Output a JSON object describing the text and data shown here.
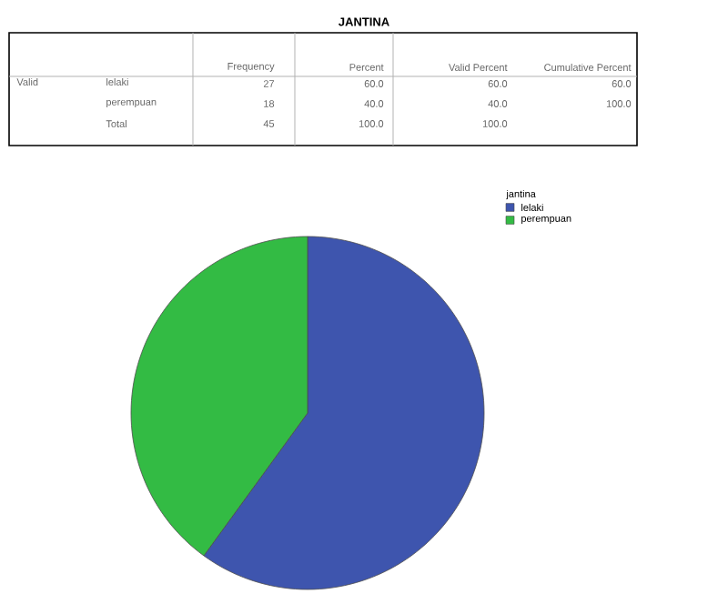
{
  "chart_data": {
    "type": "pie",
    "title": "JANTINA",
    "legend_title": "jantina",
    "legend": "top right",
    "categories": [
      "lelaki",
      "perempuan"
    ],
    "values": [
      60,
      40
    ],
    "colors": [
      "#3e55ae",
      "#33bb44"
    ],
    "annotations": [
      "Frequency",
      "Percent",
      "Valid Percent",
      "Cumulative Percent",
      "Valid",
      "lelaki",
      "27",
      "60.0",
      "60.0",
      "60.0",
      "perempuan",
      "18",
      "40.0",
      "40.0",
      "100.0",
      "Total",
      "45",
      "100.0",
      "100.0"
    ]
  }
}
